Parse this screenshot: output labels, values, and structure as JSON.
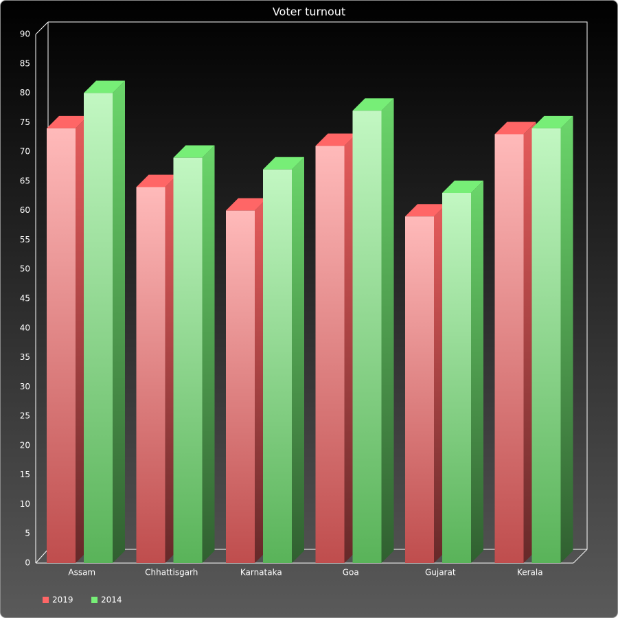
{
  "chart_data": {
    "type": "bar3d",
    "title": "Voter turnout",
    "categories": [
      "Assam",
      "Chhattisgarh",
      "Karnataka",
      "Goa",
      "Gujarat",
      "Kerala"
    ],
    "series": [
      {
        "name": "2019",
        "color": "#ff6666",
        "values": [
          74,
          64,
          60,
          71,
          59,
          73
        ]
      },
      {
        "name": "2014",
        "color": "#77ee77",
        "values": [
          80,
          69,
          67,
          77,
          63,
          74
        ]
      }
    ],
    "ylim": [
      0,
      90
    ],
    "yticks": [
      0,
      5,
      10,
      15,
      20,
      25,
      30,
      35,
      40,
      45,
      50,
      55,
      60,
      65,
      70,
      75,
      80,
      85,
      90
    ],
    "legend": "bottom-left"
  }
}
